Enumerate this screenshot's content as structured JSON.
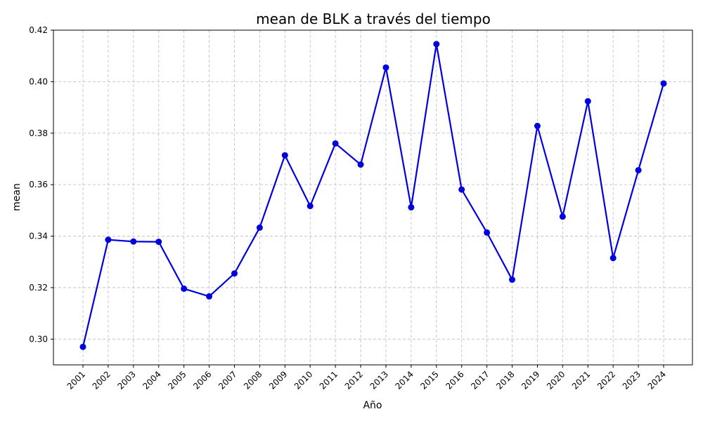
{
  "chart_data": {
    "type": "line",
    "title": "mean de BLK a través del tiempo",
    "xlabel": "Año",
    "ylabel": "mean",
    "ylim": [
      0.29,
      0.42
    ],
    "yticks": [
      "0.30",
      "0.32",
      "0.34",
      "0.36",
      "0.38",
      "0.40",
      "0.42"
    ],
    "grid": true,
    "colors": {
      "line": "#0000dd"
    },
    "x": [
      "2001",
      "2002",
      "2003",
      "2004",
      "2005",
      "2006",
      "2007",
      "2008",
      "2009",
      "2010",
      "2011",
      "2012",
      "2013",
      "2014",
      "2015",
      "2016",
      "2017",
      "2018",
      "2019",
      "2020",
      "2021",
      "2022",
      "2023",
      "2024"
    ],
    "series": [
      {
        "values": [
          0.297,
          0.3386,
          0.3379,
          0.3378,
          0.3196,
          0.3166,
          0.3255,
          0.3433,
          0.3714,
          0.3517,
          0.376,
          0.3678,
          0.4055,
          0.3512,
          0.4146,
          0.3581,
          0.3414,
          0.3231,
          0.3828,
          0.3476,
          0.3924,
          0.3315,
          0.3656,
          0.3993
        ]
      }
    ]
  }
}
